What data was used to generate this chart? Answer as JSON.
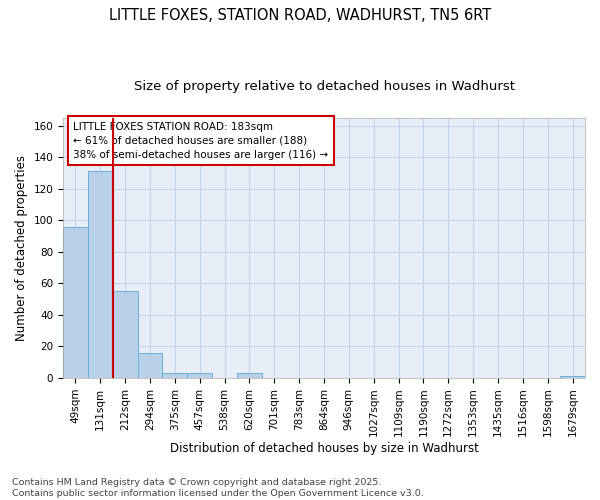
{
  "title_line1": "LITTLE FOXES, STATION ROAD, WADHURST, TN5 6RT",
  "title_line2": "Size of property relative to detached houses in Wadhurst",
  "xlabel": "Distribution of detached houses by size in Wadhurst",
  "ylabel": "Number of detached properties",
  "categories": [
    "49sqm",
    "131sqm",
    "212sqm",
    "294sqm",
    "375sqm",
    "457sqm",
    "538sqm",
    "620sqm",
    "701sqm",
    "783sqm",
    "864sqm",
    "946sqm",
    "1027sqm",
    "1109sqm",
    "1190sqm",
    "1272sqm",
    "1353sqm",
    "1435sqm",
    "1516sqm",
    "1598sqm",
    "1679sqm"
  ],
  "values": [
    96,
    131,
    55,
    16,
    3,
    3,
    0,
    3,
    0,
    0,
    0,
    0,
    0,
    0,
    0,
    0,
    0,
    0,
    0,
    0,
    1
  ],
  "bar_color": "#b8d0e8",
  "bar_edge_color": "#6aaed6",
  "grid_color": "#c8d4e8",
  "background_color": "#e8eef8",
  "annotation_line1": "LITTLE FOXES STATION ROAD: 183sqm",
  "annotation_line2": "← 61% of detached houses are smaller (188)",
  "annotation_line3": "38% of semi-detached houses are larger (116) →",
  "annotation_box_color": "#cc0000",
  "vertical_line_x": 1.5,
  "ylim": [
    0,
    165
  ],
  "yticks": [
    0,
    20,
    40,
    60,
    80,
    100,
    120,
    140,
    160
  ],
  "footnote": "Contains HM Land Registry data © Crown copyright and database right 2025.\nContains public sector information licensed under the Open Government Licence v3.0.",
  "title_fontsize": 10.5,
  "subtitle_fontsize": 9.5,
  "axis_label_fontsize": 8.5,
  "tick_fontsize": 7.5,
  "annotation_fontsize": 7.5,
  "footnote_fontsize": 6.8
}
